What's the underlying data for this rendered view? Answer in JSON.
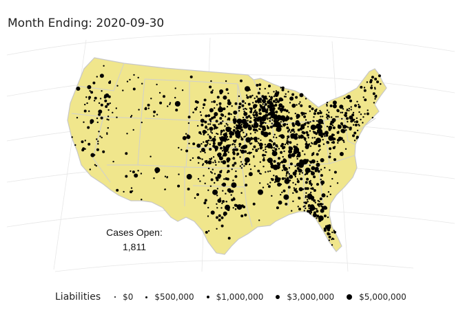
{
  "title": "Month Ending: 2020-09-30",
  "cases_open": {
    "label": "Cases Open:",
    "value": "1,811"
  },
  "legend": {
    "title": "Liabilities",
    "items": [
      {
        "label": "$0",
        "size": "tiny"
      },
      {
        "label": "$500,000",
        "size": "small"
      },
      {
        "label": "$1,000,000",
        "size": "medium"
      },
      {
        "label": "$3,000,000",
        "size": "large"
      },
      {
        "label": "$5,000,000",
        "size": "xlarge"
      }
    ]
  },
  "colors": {
    "land": "#f0e68c",
    "border": "#c8c8c8",
    "point": "#000000",
    "graticule": "#e6e6e6"
  },
  "map_data": {
    "type": "bubble-map",
    "region": "contiguous United States",
    "projection": "conic"
  }
}
